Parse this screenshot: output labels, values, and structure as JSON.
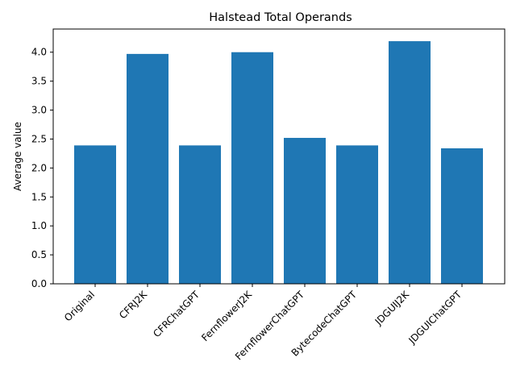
{
  "chart_data": {
    "type": "bar",
    "title": "Halstead Total Operands",
    "xlabel": "",
    "ylabel": "Average value",
    "categories": [
      "Original",
      "CFRJ2K",
      "CFRChatGPT",
      "FernflowerJ2K",
      "FernflowerChatGPT",
      "BytecodeChatGPT",
      "JDGUIJ2K",
      "JDGUIChatGPT"
    ],
    "values": [
      2.39,
      3.97,
      2.39,
      4.0,
      2.52,
      2.39,
      4.19,
      2.34
    ],
    "ylim": [
      0,
      4.4
    ],
    "yticks": [
      0.0,
      0.5,
      1.0,
      1.5,
      2.0,
      2.5,
      3.0,
      3.5,
      4.0
    ],
    "ytick_labels": [
      "0.0",
      "0.5",
      "1.0",
      "1.5",
      "2.0",
      "2.5",
      "3.0",
      "3.5",
      "4.0"
    ],
    "bar_color": "#1f77b4",
    "grid": false,
    "legend": "none"
  }
}
